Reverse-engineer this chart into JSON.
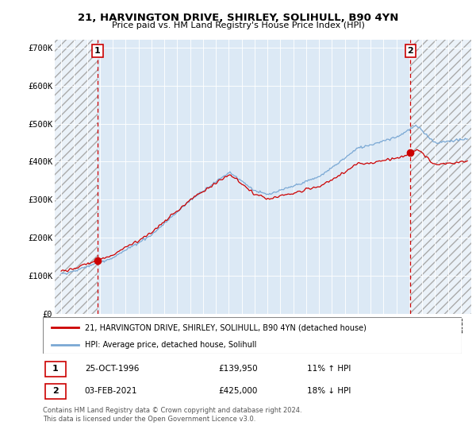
{
  "title1": "21, HARVINGTON DRIVE, SHIRLEY, SOLIHULL, B90 4YN",
  "title2": "Price paid vs. HM Land Registry's House Price Index (HPI)",
  "background_color": "#ffffff",
  "plot_bg_color": "#dce9f5",
  "hatch_color": "#c0c0c0",
  "red_line_color": "#cc0000",
  "blue_line_color": "#7aa8d4",
  "sale1_date_x": 1996.82,
  "sale1_value": 139950,
  "sale1_label": "1",
  "sale2_date_x": 2021.09,
  "sale2_value": 425000,
  "sale2_label": "2",
  "ylim_min": 0,
  "ylim_max": 720000,
  "xlim_min": 1993.5,
  "xlim_max": 2025.8,
  "legend_line1": "21, HARVINGTON DRIVE, SHIRLEY, SOLIHULL, B90 4YN (detached house)",
  "legend_line2": "HPI: Average price, detached house, Solihull",
  "table_row1_num": "1",
  "table_row1_date": "25-OCT-1996",
  "table_row1_price": "£139,950",
  "table_row1_hpi": "11% ↑ HPI",
  "table_row2_num": "2",
  "table_row2_date": "03-FEB-2021",
  "table_row2_price": "£425,000",
  "table_row2_hpi": "18% ↓ HPI",
  "footer": "Contains HM Land Registry data © Crown copyright and database right 2024.\nThis data is licensed under the Open Government Licence v3.0.",
  "yticks": [
    0,
    100000,
    200000,
    300000,
    400000,
    500000,
    600000,
    700000
  ],
  "ylabels": [
    "£0",
    "£100K",
    "£200K",
    "£300K",
    "£400K",
    "£500K",
    "£600K",
    "£700K"
  ]
}
